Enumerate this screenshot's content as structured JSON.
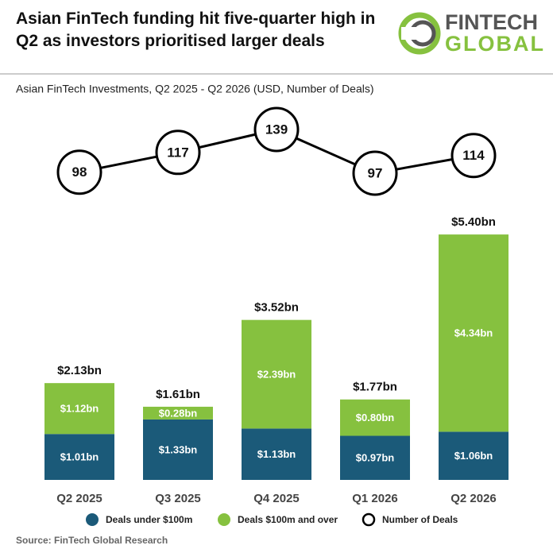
{
  "chart_data": {
    "type": "bar",
    "title": "Asian FinTech funding hit five-quarter high in Q2 as investors prioritised larger deals",
    "subtitle": "Asian FinTech Investments, Q2 2025 - Q2 2026 (USD, Number of Deals)",
    "logo_lines": [
      "FINTECH",
      "GLOBAL"
    ],
    "source": "Source: FinTech Global Research",
    "categories": [
      "Q2 2025",
      "Q3 2025",
      "Q4 2025",
      "Q1 2026",
      "Q2 2026"
    ],
    "series": [
      {
        "name": "Deals under $100m",
        "color": "#1b5a79",
        "values": [
          1.01,
          1.33,
          1.13,
          0.97,
          1.06
        ],
        "value_labels": [
          "$1.01bn",
          "$1.33bn",
          "$1.13bn",
          "$0.97bn",
          "$1.06bn"
        ]
      },
      {
        "name": "Deals $100m and over",
        "color": "#86c13f",
        "values": [
          1.12,
          0.28,
          2.39,
          0.8,
          4.34
        ],
        "value_labels": [
          "$1.12bn",
          "$0.28bn",
          "$2.39bn",
          "$0.80bn",
          "$4.34bn"
        ]
      },
      {
        "name": "Number of Deals",
        "type": "line",
        "color": "#000000",
        "values": [
          98,
          117,
          139,
          97,
          114
        ]
      }
    ],
    "totals": [
      2.13,
      1.61,
      3.52,
      1.77,
      5.4
    ],
    "total_labels": [
      "$2.13bn",
      "$1.61bn",
      "$3.52bn",
      "$1.77bn",
      "$5.40bn"
    ]
  }
}
